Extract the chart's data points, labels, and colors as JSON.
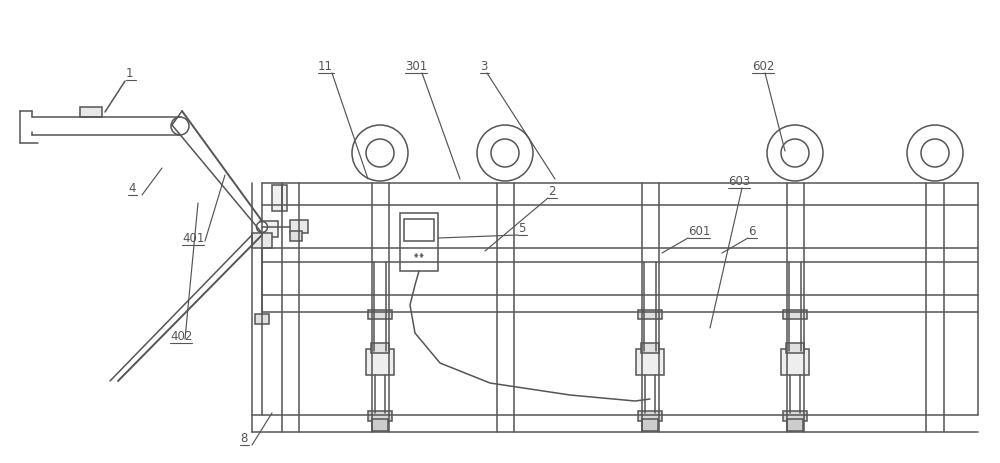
{
  "bg": "#ffffff",
  "lc": "#555555",
  "lw": 1.1,
  "fig_w": 10.0,
  "fig_h": 4.63,
  "xlim": [
    0,
    10.0
  ],
  "ylim": [
    0,
    4.63
  ]
}
